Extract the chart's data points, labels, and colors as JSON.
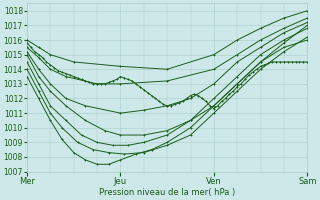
{
  "xlabel": "Pression niveau de la mer( hPa )",
  "background_color": "#cce8e8",
  "grid_color": "#aacccc",
  "line_color": "#1a5c1a",
  "ylim": [
    1007,
    1018.5
  ],
  "xlim": [
    0,
    72
  ],
  "yticks": [
    1007,
    1008,
    1009,
    1010,
    1011,
    1012,
    1013,
    1014,
    1015,
    1016,
    1017,
    1018
  ],
  "xtick_positions": [
    0,
    24,
    48,
    72
  ],
  "xtick_labels": [
    "Mer",
    "Jeu",
    "Ven",
    "Sam"
  ],
  "series": [
    {
      "x": [
        0,
        3,
        6,
        12,
        24,
        36,
        48,
        54,
        60,
        66,
        72
      ],
      "y": [
        1016.0,
        1015.5,
        1015.0,
        1014.5,
        1014.2,
        1014.0,
        1015.0,
        1016.0,
        1016.8,
        1017.5,
        1018.0
      ]
    },
    {
      "x": [
        0,
        3,
        6,
        10,
        18,
        24,
        36,
        48,
        54,
        60,
        66,
        72
      ],
      "y": [
        1015.5,
        1014.8,
        1014.0,
        1013.5,
        1013.0,
        1013.0,
        1013.2,
        1014.0,
        1015.0,
        1016.0,
        1016.8,
        1017.5
      ]
    },
    {
      "x": [
        0,
        3,
        6,
        10,
        15,
        24,
        30,
        36,
        42,
        48,
        54,
        60,
        66,
        72
      ],
      "y": [
        1015.2,
        1014.0,
        1013.0,
        1012.0,
        1011.5,
        1011.0,
        1011.2,
        1011.5,
        1012.0,
        1013.0,
        1014.5,
        1015.5,
        1016.5,
        1017.2
      ]
    },
    {
      "x": [
        0,
        3,
        6,
        10,
        15,
        20,
        24,
        30,
        36,
        42,
        48,
        54,
        60,
        66,
        72
      ],
      "y": [
        1015.0,
        1013.5,
        1012.5,
        1011.5,
        1010.5,
        1009.8,
        1009.5,
        1009.5,
        1009.8,
        1010.5,
        1011.5,
        1013.0,
        1014.5,
        1015.8,
        1017.0
      ]
    },
    {
      "x": [
        0,
        3,
        6,
        10,
        14,
        18,
        22,
        26,
        30,
        36,
        42,
        48,
        54,
        60,
        66,
        72
      ],
      "y": [
        1014.5,
        1013.0,
        1011.5,
        1010.5,
        1009.5,
        1009.0,
        1008.8,
        1008.8,
        1009.0,
        1009.5,
        1010.5,
        1012.0,
        1013.5,
        1015.0,
        1016.0,
        1016.8
      ]
    },
    {
      "x": [
        0,
        3,
        6,
        9,
        13,
        17,
        21,
        25,
        30,
        36,
        42,
        48,
        54,
        60,
        66,
        72
      ],
      "y": [
        1014.0,
        1012.5,
        1011.0,
        1010.0,
        1009.0,
        1008.5,
        1008.3,
        1008.2,
        1008.3,
        1008.8,
        1009.5,
        1011.0,
        1012.5,
        1014.0,
        1015.2,
        1016.2
      ]
    },
    {
      "x": [
        0,
        3,
        6,
        9,
        12,
        15,
        18,
        21,
        24,
        28,
        32,
        36,
        42,
        48,
        54,
        60,
        66,
        72
      ],
      "y": [
        1013.5,
        1012.0,
        1010.5,
        1009.2,
        1008.3,
        1007.8,
        1007.5,
        1007.5,
        1007.8,
        1008.2,
        1008.5,
        1009.0,
        1010.0,
        1011.5,
        1013.0,
        1014.5,
        1015.5,
        1016.0
      ]
    },
    {
      "x": [
        0,
        1,
        2,
        3,
        4,
        5,
        6,
        7,
        8,
        9,
        10,
        11,
        12,
        13,
        14,
        15,
        16,
        17,
        18,
        19,
        20,
        21,
        22,
        23,
        24,
        25,
        26,
        27,
        28,
        29,
        30,
        31,
        32,
        33,
        34,
        35,
        36,
        37,
        38,
        39,
        40,
        41,
        42,
        43,
        44,
        45,
        46,
        47,
        48,
        49,
        50,
        51,
        52,
        53,
        54,
        55,
        56,
        57,
        58,
        59,
        60,
        61,
        62,
        63,
        64,
        65,
        66,
        67,
        68,
        69,
        70,
        71,
        72
      ],
      "y": [
        1015.8,
        1015.5,
        1015.2,
        1015.0,
        1014.8,
        1014.5,
        1014.3,
        1014.1,
        1013.9,
        1013.8,
        1013.7,
        1013.6,
        1013.5,
        1013.4,
        1013.3,
        1013.2,
        1013.1,
        1013.0,
        1013.0,
        1013.0,
        1013.0,
        1013.1,
        1013.2,
        1013.3,
        1013.5,
        1013.4,
        1013.3,
        1013.2,
        1013.0,
        1012.8,
        1012.6,
        1012.4,
        1012.2,
        1012.0,
        1011.8,
        1011.6,
        1011.5,
        1011.5,
        1011.6,
        1011.7,
        1011.8,
        1012.0,
        1012.2,
        1012.3,
        1012.2,
        1012.0,
        1011.8,
        1011.5,
        1011.3,
        1011.5,
        1011.8,
        1012.0,
        1012.3,
        1012.5,
        1012.8,
        1013.0,
        1013.3,
        1013.6,
        1013.8,
        1014.0,
        1014.2,
        1014.3,
        1014.4,
        1014.5,
        1014.5,
        1014.5,
        1014.5,
        1014.5,
        1014.5,
        1014.5,
        1014.5,
        1014.5,
        1014.5
      ]
    }
  ]
}
